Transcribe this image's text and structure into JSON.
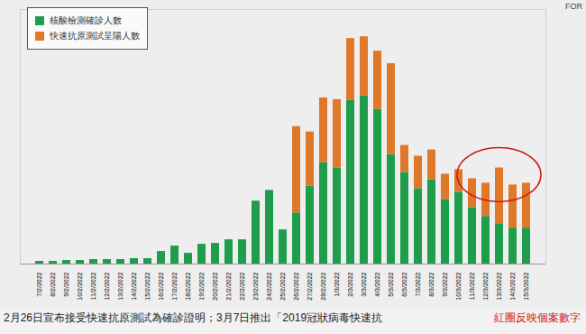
{
  "chart_data": {
    "type": "bar",
    "stacked": true,
    "categories": [
      "7/2/2022",
      "8/2/2022",
      "9/2/2022",
      "10/2/2022",
      "11/2/2022",
      "12/2/2022",
      "13/2/2022",
      "14/2/2022",
      "15/2/2022",
      "16/2/2022",
      "17/2/2022",
      "18/2/2022",
      "19/2/2022",
      "20/2/2022",
      "21/2/2022",
      "22/2/2022",
      "23/2/2022",
      "24/2/2022",
      "25/2/2022",
      "26/2/2022",
      "27/2/2022",
      "28/2/2022",
      "1/3/2022",
      "2/3/2022",
      "3/3/2022",
      "4/3/2022",
      "5/3/2022",
      "6/3/2022",
      "7/3/2022",
      "8/3/2022",
      "9/3/2022",
      "10/3/2022",
      "11/3/2022",
      "12/3/2022",
      "13/3/2022",
      "14/3/2022",
      "15/3/2022"
    ],
    "series": [
      {
        "name": "核酸檢測確診人數",
        "color": "#1f9d4c",
        "values": [
          900,
          900,
          1200,
          1200,
          1500,
          1500,
          1500,
          1800,
          1800,
          4200,
          6000,
          3600,
          6600,
          6900,
          8100,
          8100,
          21000,
          24600,
          11400,
          17100,
          26100,
          33900,
          32100,
          54600,
          56100,
          51600,
          36600,
          30600,
          25200,
          28200,
          21600,
          24000,
          18900,
          15900,
          13500,
          12000,
          12000
        ]
      },
      {
        "name": "快速抗原測試呈陽人數",
        "color": "#e0782a",
        "values": [
          0,
          0,
          0,
          0,
          0,
          0,
          0,
          0,
          0,
          0,
          0,
          0,
          0,
          0,
          0,
          0,
          0,
          0,
          0,
          28800,
          18000,
          21600,
          22800,
          20700,
          19800,
          19500,
          30300,
          9000,
          10800,
          9900,
          8400,
          7500,
          9600,
          11100,
          18600,
          14400,
          15000
        ]
      }
    ],
    "ylim": [
      0,
      85000
    ],
    "grid": false,
    "tick_labels": "x",
    "legend": "top-left",
    "caption": "2月26日宣布接受快速抗原測試為確診證明；3月7日推出「2019冠狀病毒快速抗",
    "annotation": "紅圈反映個案數字",
    "watermark": "FOR"
  }
}
